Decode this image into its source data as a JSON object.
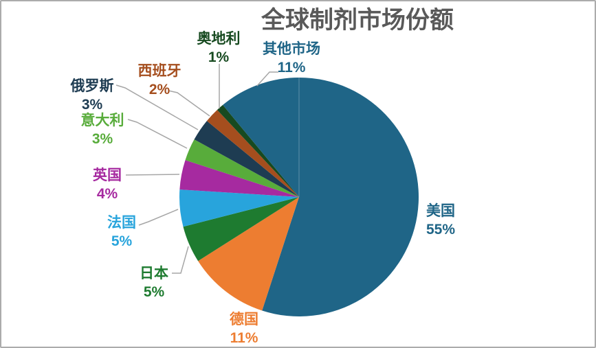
{
  "frame": {
    "background": "#FFFFFF",
    "border_color": "#ABABAB"
  },
  "title": {
    "text": "全球制剂市场份额",
    "color": "#595959"
  },
  "chart_data": {
    "type": "pie",
    "title": "全球制剂市场份额",
    "direction": "clockwise",
    "start_angle_deg": 0,
    "unit": "%",
    "legend_position": "none",
    "label_style": "callout-outside",
    "leader_line_color": "#A6A6A6",
    "slice_divider_note": "thin light line at 12 o'clock between 其他市场 and 美国",
    "categories": [
      "美国",
      "德国",
      "日本",
      "法国",
      "英国",
      "意大利",
      "俄罗斯",
      "西班牙",
      "奥地利",
      "其他市场"
    ],
    "values": [
      55,
      11,
      5,
      5,
      4,
      3,
      3,
      2,
      1,
      11
    ],
    "slices": [
      {
        "label": "美国",
        "value": 55,
        "display": "55%",
        "color": "#1F6587"
      },
      {
        "label": "德国",
        "value": 11,
        "display": "11%",
        "color": "#ED7D31"
      },
      {
        "label": "日本",
        "value": 5,
        "display": "5%",
        "color": "#1E7B30"
      },
      {
        "label": "法国",
        "value": 5,
        "display": "5%",
        "color": "#28A4DC"
      },
      {
        "label": "英国",
        "value": 4,
        "display": "4%",
        "color": "#A62AA0"
      },
      {
        "label": "意大利",
        "value": 3,
        "display": "3%",
        "color": "#58AC3B"
      },
      {
        "label": "俄罗斯",
        "value": 3,
        "display": "3%",
        "color": "#1E3C52"
      },
      {
        "label": "西班牙",
        "value": 2,
        "display": "2%",
        "color": "#A54E1E"
      },
      {
        "label": "奥地利",
        "value": 1,
        "display": "1%",
        "color": "#174A20"
      },
      {
        "label": "其他市场",
        "value": 11,
        "display": "11%",
        "color": "#1F6587"
      }
    ]
  }
}
